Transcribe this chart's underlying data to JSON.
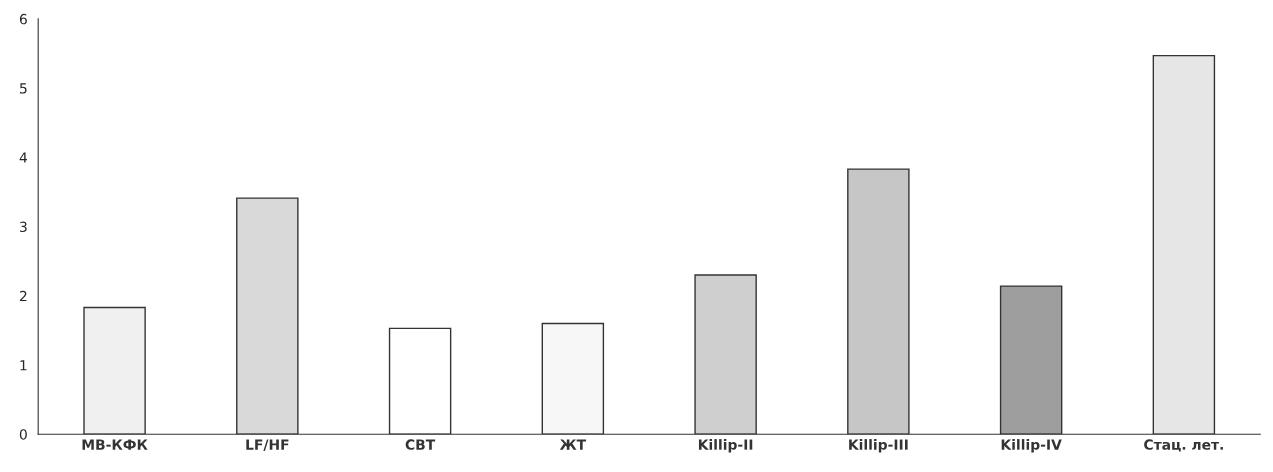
{
  "chart_data": {
    "type": "bar",
    "categories": [
      "МВ-КФК",
      "LF/HF",
      "СВТ",
      "ЖТ",
      "Killip-II",
      "Killip-III",
      "Killip-IV",
      "Стац. лет."
    ],
    "values": [
      1.83,
      3.41,
      1.53,
      1.6,
      2.3,
      3.83,
      2.14,
      5.47
    ],
    "colors": [
      "#f0f0f0",
      "#d9d9d9",
      "#ffffff",
      "#f7f7f7",
      "#cfcfcf",
      "#c6c6c6",
      "#9e9e9e",
      "#e6e6e6"
    ],
    "ylim": [
      0,
      6
    ],
    "yticks": [
      0,
      1,
      2,
      3,
      4,
      5,
      6
    ],
    "grid": false
  }
}
